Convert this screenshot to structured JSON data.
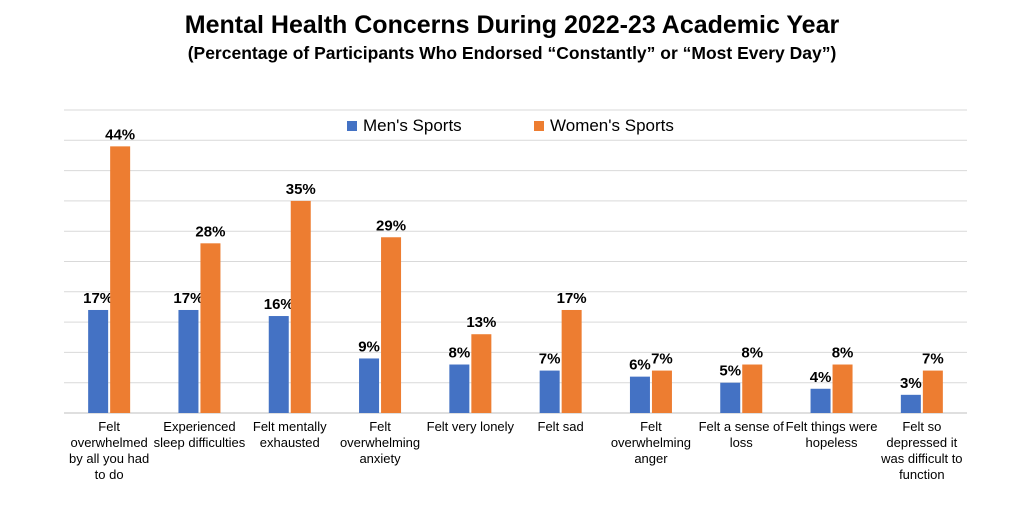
{
  "title": "Mental Health Concerns During 2022-23 Academic Year",
  "subtitle": "(Percentage of Participants Who Endorsed “Constantly” or “Most Every Day”)",
  "chart_data": {
    "type": "bar",
    "title": "Mental Health Concerns During 2022-23 Academic Year",
    "subtitle": "(Percentage of Participants Who Endorsed “Constantly” or “Most Every Day”)",
    "categories": [
      "Felt overwhelmed by all you had to do",
      "Experienced sleep difficulties",
      "Felt mentally exhausted",
      "Felt overwhelming anxiety",
      "Felt very lonely",
      "Felt sad",
      "Felt overwhelming anger",
      "Felt a sense of loss",
      "Felt things were hopeless",
      "Felt so depressed it was difficult to function"
    ],
    "series": [
      {
        "name": "Men's Sports",
        "color": "#4472C4",
        "values": [
          17,
          17,
          16,
          9,
          8,
          7,
          6,
          5,
          4,
          3
        ],
        "labels": [
          "17%",
          "17%",
          "16%",
          "9%",
          "8%",
          "7%",
          "6%",
          "5%",
          "4%",
          "3%"
        ]
      },
      {
        "name": "Women's Sports",
        "color": "#ED7D31",
        "values": [
          44,
          28,
          35,
          29,
          13,
          17,
          7,
          8,
          8,
          7
        ],
        "labels": [
          "44%",
          "28%",
          "35%",
          "29%",
          "13%",
          "17%",
          "7%",
          "8%",
          "8%",
          "7%"
        ]
      }
    ],
    "ylim": [
      0,
      50
    ],
    "grid": true,
    "legend": "top-center",
    "gridline_color": "#d9d9d9"
  }
}
